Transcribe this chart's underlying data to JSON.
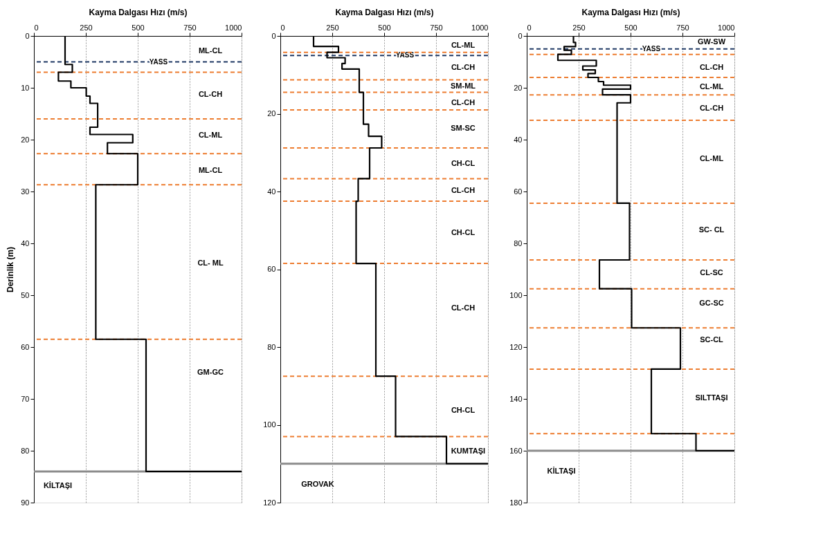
{
  "chart_data": [
    {
      "type": "line",
      "xlabel": "Kayma Dalgası Hızı (m/s)",
      "ylabel": "Derinlik (m)",
      "xlim": [
        0,
        1000
      ],
      "xticks": [
        0,
        250,
        500,
        750,
        1000
      ],
      "ylim": [
        90,
        0
      ],
      "yticks": [
        0,
        10,
        20,
        30,
        40,
        50,
        60,
        70,
        80,
        90
      ],
      "grid": "x",
      "marker": "none",
      "line_style": "solid",
      "series": [
        {
          "color": "#000000",
          "x": [
            150,
            150,
            185,
            185,
            118,
            118,
            178,
            178,
            252,
            252,
            270,
            270,
            307,
            307,
            270,
            270,
            476,
            476,
            354,
            354,
            500,
            500,
            298,
            298,
            540,
            540,
            1000
          ],
          "values": [
            0,
            5.5,
            5.5,
            7,
            7,
            8.7,
            8.7,
            10,
            10,
            11.6,
            11.6,
            13,
            13,
            17.6,
            17.6,
            19,
            19,
            20.6,
            20.6,
            22.7,
            22.7,
            28.7,
            28.7,
            58.5,
            58.5,
            84,
            84
          ]
        }
      ],
      "ref_lines": [
        {
          "axis": "y",
          "value": 5,
          "label": "YASS",
          "color": "#1f3864",
          "line_style": "dashed"
        },
        {
          "axis": "y",
          "value": 7,
          "color": "#ed7d31",
          "line_style": "dashed"
        },
        {
          "axis": "y",
          "value": 16,
          "color": "#ed7d31",
          "line_style": "dashed"
        },
        {
          "axis": "y",
          "value": 22.7,
          "color": "#ed7d31",
          "line_style": "dashed"
        },
        {
          "axis": "y",
          "value": 28.7,
          "color": "#ed7d31",
          "line_style": "dashed"
        },
        {
          "axis": "y",
          "value": 58.5,
          "color": "#ed7d31",
          "line_style": "dashed"
        },
        {
          "axis": "y",
          "value": 84,
          "color": "#8c8c8c",
          "line_style": "solid"
        }
      ],
      "annotations": [
        "ML-CL",
        "CL-CH",
        "CL-ML",
        "ML-CL",
        "CL- ML",
        "GM-GC",
        "KİLTAŞI"
      ]
    },
    {
      "type": "line",
      "xlabel": "Kayma Dalgası Hızı (m/s)",
      "xlim": [
        0,
        1000
      ],
      "xticks": [
        0,
        250,
        500,
        750,
        1000
      ],
      "ylim": [
        120,
        0
      ],
      "yticks": [
        0,
        20,
        40,
        60,
        80,
        100,
        120
      ],
      "grid": "x",
      "marker": "none",
      "line_style": "solid",
      "series": [
        {
          "color": "#000000",
          "x": [
            160,
            160,
            280,
            280,
            225,
            225,
            312,
            312,
            297,
            297,
            380,
            380,
            400,
            400,
            425,
            425,
            488,
            488,
            430,
            430,
            375,
            375,
            365,
            365,
            460,
            460,
            555,
            555,
            800,
            800,
            1000
          ],
          "values": [
            0,
            2.7,
            2.7,
            4.2,
            4.2,
            5.6,
            5.6,
            7.1,
            7.1,
            8.5,
            8.5,
            14.5,
            14.5,
            22.7,
            22.7,
            25.8,
            25.8,
            28.8,
            28.8,
            36.7,
            36.7,
            42.5,
            42.5,
            58.5,
            58.5,
            87.5,
            87.5,
            103,
            103,
            110,
            110
          ]
        }
      ],
      "ref_lines": [
        {
          "axis": "y",
          "value": 5,
          "label": "YASS",
          "color": "#1f3864",
          "line_style": "dashed"
        },
        {
          "axis": "y",
          "value": 4.2,
          "color": "#ed7d31",
          "line_style": "dashed"
        },
        {
          "axis": "y",
          "value": 11.3,
          "color": "#ed7d31",
          "line_style": "dashed"
        },
        {
          "axis": "y",
          "value": 14.5,
          "color": "#ed7d31",
          "line_style": "dashed"
        },
        {
          "axis": "y",
          "value": 19,
          "color": "#ed7d31",
          "line_style": "dashed"
        },
        {
          "axis": "y",
          "value": 28.8,
          "color": "#ed7d31",
          "line_style": "dashed"
        },
        {
          "axis": "y",
          "value": 36.7,
          "color": "#ed7d31",
          "line_style": "dashed"
        },
        {
          "axis": "y",
          "value": 42.5,
          "color": "#ed7d31",
          "line_style": "dashed"
        },
        {
          "axis": "y",
          "value": 58.5,
          "color": "#ed7d31",
          "line_style": "dashed"
        },
        {
          "axis": "y",
          "value": 87.5,
          "color": "#ed7d31",
          "line_style": "dashed"
        },
        {
          "axis": "y",
          "value": 103,
          "color": "#ed7d31",
          "line_style": "dashed"
        },
        {
          "axis": "y",
          "value": 110,
          "color": "#8c8c8c",
          "line_style": "solid"
        }
      ],
      "annotations": [
        "CL-ML",
        "CL-CH",
        "SM-ML",
        "CL-CH",
        "SM-SC",
        "CH-CL",
        "CL-CH",
        "CH-CL",
        "CL-CH",
        "CH-CL",
        "KUMTAŞI",
        "GROVAK"
      ]
    },
    {
      "type": "line",
      "xlabel": "Kayma Dalgası Hızı (m/s)",
      "xlim": [
        0,
        1000
      ],
      "xticks": [
        0,
        250,
        500,
        750,
        1000
      ],
      "ylim": [
        180,
        0
      ],
      "yticks": [
        0,
        20,
        40,
        60,
        80,
        100,
        120,
        140,
        160,
        180
      ],
      "grid": "x",
      "marker": "none",
      "line_style": "solid",
      "series": [
        {
          "color": "#000000",
          "x": [
            225,
            225,
            235,
            235,
            180,
            180,
            215,
            215,
            150,
            150,
            335,
            335,
            270,
            270,
            330,
            330,
            295,
            295,
            345,
            345,
            370,
            370,
            500,
            500,
            365,
            365,
            500,
            500,
            435,
            435,
            495,
            495,
            350,
            350,
            505,
            505,
            740,
            740,
            600,
            600,
            815,
            815,
            1000
          ],
          "values": [
            0,
            2.5,
            2.5,
            4.1,
            4.1,
            5.5,
            5.5,
            7.1,
            7.1,
            9.4,
            9.4,
            11.6,
            11.6,
            13.1,
            13.1,
            14.5,
            14.5,
            16,
            16,
            17.6,
            17.6,
            19,
            19,
            20.5,
            20.5,
            22.7,
            22.7,
            25.8,
            25.8,
            64.5,
            64.5,
            86.4,
            86.4,
            97.5,
            97.5,
            112.6,
            112.6,
            128.5,
            128.5,
            153.4,
            153.4,
            160,
            160
          ]
        }
      ],
      "ref_lines": [
        {
          "axis": "y",
          "value": 5,
          "label": "YASS",
          "color": "#1f3864",
          "line_style": "dashed"
        },
        {
          "axis": "y",
          "value": 7.1,
          "color": "#ed7d31",
          "line_style": "dashed"
        },
        {
          "axis": "y",
          "value": 16,
          "color": "#ed7d31",
          "line_style": "dashed"
        },
        {
          "axis": "y",
          "value": 22.7,
          "color": "#ed7d31",
          "line_style": "dashed"
        },
        {
          "axis": "y",
          "value": 32.5,
          "color": "#ed7d31",
          "line_style": "dashed"
        },
        {
          "axis": "y",
          "value": 64.5,
          "color": "#ed7d31",
          "line_style": "dashed"
        },
        {
          "axis": "y",
          "value": 86.4,
          "color": "#ed7d31",
          "line_style": "dashed"
        },
        {
          "axis": "y",
          "value": 97.5,
          "color": "#ed7d31",
          "line_style": "dashed"
        },
        {
          "axis": "y",
          "value": 112.6,
          "color": "#ed7d31",
          "line_style": "dashed"
        },
        {
          "axis": "y",
          "value": 128.5,
          "color": "#ed7d31",
          "line_style": "dashed"
        },
        {
          "axis": "y",
          "value": 153.4,
          "color": "#ed7d31",
          "line_style": "dashed"
        },
        {
          "axis": "y",
          "value": 160,
          "color": "#8c8c8c",
          "line_style": "solid"
        }
      ],
      "annotations": [
        "GW-SW",
        "CL-CH",
        "CL-ML",
        "CL-CH",
        "CL-ML",
        "SC- CL",
        "CL-SC",
        "GC-SC",
        "SC-CL",
        "SILTTAŞI",
        "KİLTAŞI"
      ]
    }
  ]
}
